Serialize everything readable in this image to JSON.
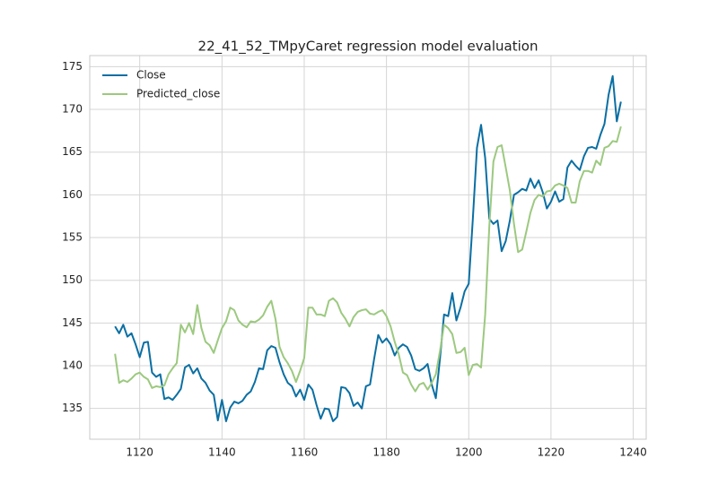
{
  "chart_data": {
    "type": "line",
    "title": "22_41_52_TMpyCaret regression model evaluation",
    "x": [
      1114,
      1115,
      1116,
      1117,
      1118,
      1119,
      1120,
      1121,
      1122,
      1123,
      1124,
      1125,
      1126,
      1127,
      1128,
      1129,
      1130,
      1131,
      1132,
      1133,
      1134,
      1135,
      1136,
      1137,
      1138,
      1139,
      1140,
      1141,
      1142,
      1143,
      1144,
      1145,
      1146,
      1147,
      1148,
      1149,
      1150,
      1151,
      1152,
      1153,
      1154,
      1155,
      1156,
      1157,
      1158,
      1159,
      1160,
      1161,
      1162,
      1163,
      1164,
      1165,
      1166,
      1167,
      1168,
      1169,
      1170,
      1171,
      1172,
      1173,
      1174,
      1175,
      1176,
      1177,
      1178,
      1179,
      1180,
      1181,
      1182,
      1183,
      1184,
      1185,
      1186,
      1187,
      1188,
      1189,
      1190,
      1191,
      1192,
      1193,
      1194,
      1195,
      1196,
      1197,
      1198,
      1199,
      1200,
      1201,
      1202,
      1203,
      1204,
      1205,
      1206,
      1207,
      1208,
      1209,
      1210,
      1211,
      1212,
      1213,
      1214,
      1215,
      1216,
      1217,
      1218,
      1219,
      1220,
      1221,
      1222,
      1223,
      1224,
      1225,
      1226,
      1227,
      1228,
      1229,
      1230,
      1231,
      1232,
      1233,
      1234,
      1235,
      1236,
      1237
    ],
    "series": [
      {
        "name": "Close",
        "color": "#0a6fa3",
        "values": [
          144.6,
          143.8,
          144.8,
          143.4,
          143.8,
          142.5,
          141.0,
          142.7,
          142.8,
          139.2,
          138.7,
          139.0,
          136.1,
          136.3,
          136.0,
          136.6,
          137.3,
          139.8,
          140.1,
          139.1,
          139.7,
          138.5,
          138.0,
          137.1,
          136.6,
          133.6,
          136.0,
          133.5,
          135.1,
          135.8,
          135.6,
          135.9,
          136.6,
          137.0,
          138.1,
          139.7,
          139.6,
          141.8,
          142.3,
          142.1,
          140.4,
          139.0,
          138.0,
          137.6,
          136.4,
          137.2,
          136.0,
          137.8,
          137.2,
          135.4,
          133.8,
          135.0,
          134.9,
          133.5,
          134.0,
          137.5,
          137.4,
          136.8,
          135.3,
          135.7,
          135.0,
          137.6,
          137.8,
          140.8,
          143.6,
          142.7,
          143.2,
          142.5,
          141.2,
          142.1,
          142.5,
          142.2,
          141.2,
          139.6,
          139.4,
          139.7,
          140.2,
          137.8,
          136.2,
          140.8,
          146.0,
          145.8,
          148.5,
          145.3,
          146.8,
          148.7,
          149.6,
          157.2,
          165.5,
          168.2,
          164.3,
          157.2,
          156.6,
          157.0,
          153.4,
          154.6,
          157.0,
          160.0,
          160.3,
          160.7,
          160.5,
          161.9,
          160.8,
          161.7,
          160.3,
          158.4,
          159.2,
          160.4,
          159.2,
          159.5,
          163.2,
          164.0,
          163.4,
          162.9,
          164.5,
          165.5,
          165.6,
          165.4,
          167.0,
          168.3,
          171.7,
          173.9,
          168.6,
          170.9
        ]
      },
      {
        "name": "Predicted_close",
        "color": "#9cc97f",
        "values": [
          141.4,
          138.0,
          138.3,
          138.1,
          138.5,
          139.0,
          139.2,
          138.7,
          138.4,
          137.4,
          137.6,
          137.5,
          137.7,
          139.0,
          139.7,
          140.3,
          144.8,
          143.9,
          145.0,
          143.7,
          147.1,
          144.4,
          142.8,
          142.4,
          141.5,
          143.0,
          144.4,
          145.2,
          146.8,
          146.5,
          145.3,
          144.8,
          144.5,
          145.2,
          145.1,
          145.4,
          145.9,
          146.9,
          147.6,
          145.5,
          142.2,
          141.0,
          140.3,
          139.4,
          138.1,
          139.4,
          140.9,
          146.8,
          146.8,
          146.0,
          146.0,
          145.8,
          147.6,
          147.9,
          147.4,
          146.2,
          145.5,
          144.6,
          145.7,
          146.3,
          146.5,
          146.6,
          146.1,
          146.0,
          146.3,
          146.5,
          145.8,
          144.6,
          142.8,
          141.3,
          139.2,
          138.9,
          137.8,
          137.0,
          137.8,
          138.0,
          137.2,
          138.0,
          139.0,
          141.7,
          144.8,
          144.4,
          143.7,
          141.5,
          141.6,
          142.1,
          138.9,
          140.1,
          140.2,
          139.8,
          146.0,
          156.3,
          163.9,
          165.6,
          165.8,
          163.2,
          160.5,
          156.6,
          153.3,
          153.6,
          155.7,
          157.9,
          159.4,
          160.0,
          159.8,
          160.4,
          160.5,
          161.1,
          161.3,
          161.1,
          160.8,
          159.1,
          159.1,
          161.6,
          162.8,
          162.8,
          162.6,
          164.0,
          163.5,
          165.5,
          165.7,
          166.3,
          166.2,
          168.0
        ]
      }
    ],
    "xlim": [
      1107.85,
      1243.15
    ],
    "xticks": [
      1120,
      1140,
      1160,
      1180,
      1200,
      1220,
      1240
    ],
    "ylim": [
      131.4,
      176.3
    ],
    "yticks": [
      135,
      140,
      145,
      150,
      155,
      160,
      165,
      170,
      175
    ],
    "grid": true,
    "legend": "upper left"
  }
}
